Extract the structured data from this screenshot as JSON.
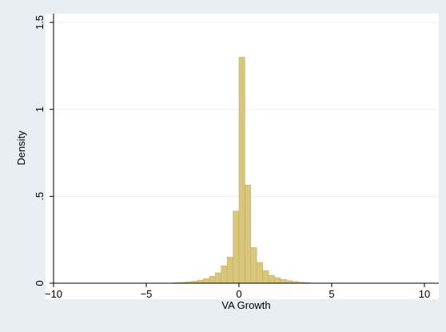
{
  "chart_data": {
    "type": "bar",
    "xlabel": "VA Growth",
    "ylabel": "Density",
    "xlim": [
      -10.5,
      10.5
    ],
    "ylim": [
      0,
      1.5
    ],
    "x_ticks": [
      -10,
      -5,
      0,
      5,
      10
    ],
    "x_tick_labels": [
      "−10",
      "−5",
      "0",
      "5",
      "10"
    ],
    "y_ticks": [
      0,
      0.5,
      1,
      1.5
    ],
    "y_tick_labels": [
      "0",
      ".5",
      "1",
      "1.5"
    ],
    "grid": true,
    "bin_width": 0.32,
    "bins": [
      {
        "x": -3.36,
        "y": 0.003
      },
      {
        "x": -3.04,
        "y": 0.005
      },
      {
        "x": -2.72,
        "y": 0.008
      },
      {
        "x": -2.4,
        "y": 0.012
      },
      {
        "x": -2.08,
        "y": 0.018
      },
      {
        "x": -1.76,
        "y": 0.026
      },
      {
        "x": -1.44,
        "y": 0.04
      },
      {
        "x": -1.12,
        "y": 0.06
      },
      {
        "x": -0.8,
        "y": 0.1
      },
      {
        "x": -0.48,
        "y": 0.15
      },
      {
        "x": -0.16,
        "y": 0.415
      },
      {
        "x": 0.16,
        "y": 1.3
      },
      {
        "x": 0.48,
        "y": 0.565
      },
      {
        "x": 0.8,
        "y": 0.205
      },
      {
        "x": 1.12,
        "y": 0.12
      },
      {
        "x": 1.44,
        "y": 0.072
      },
      {
        "x": 1.76,
        "y": 0.045
      },
      {
        "x": 2.08,
        "y": 0.032
      },
      {
        "x": 2.4,
        "y": 0.022
      },
      {
        "x": 2.72,
        "y": 0.015
      },
      {
        "x": 3.04,
        "y": 0.01
      },
      {
        "x": 3.36,
        "y": 0.006
      },
      {
        "x": 3.68,
        "y": 0.004
      }
    ],
    "colors": {
      "background": "#e8eef2",
      "plot_region": "#ffffff",
      "bar_fill": "#d8c67c",
      "bar_edge": "#c2ae58",
      "grid": "#e8eef2",
      "axis": "#000000"
    }
  }
}
